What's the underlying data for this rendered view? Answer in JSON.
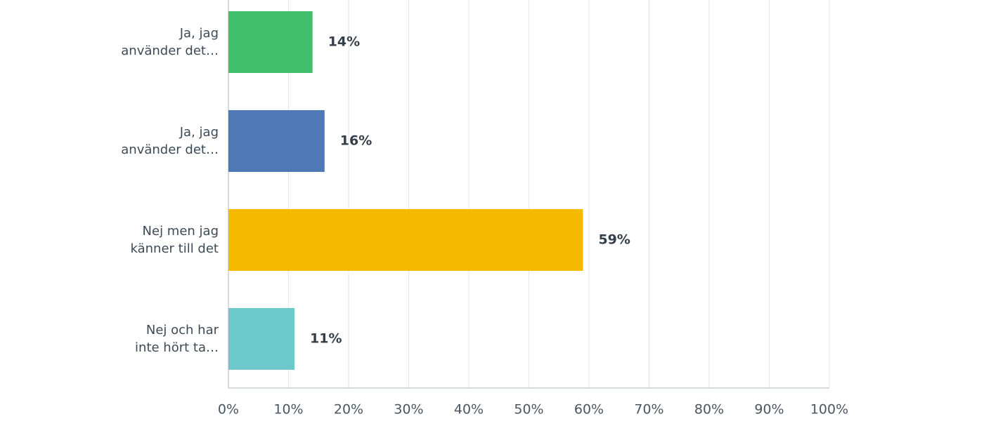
{
  "chart_data": {
    "type": "hbar",
    "categories": [
      "Ja, jag\nanvänder det…",
      "Ja, jag\nanvänder det…",
      "Nej men jag\nkänner till det",
      "Nej och har\ninte hört ta…"
    ],
    "values": [
      14,
      16,
      59,
      11
    ],
    "value_labels": [
      "14%",
      "16%",
      "59%",
      "11%"
    ],
    "colors": [
      "#42bf6c",
      "#4e79b6",
      "#f6bb00",
      "#6cc8cb"
    ],
    "xlim": [
      0,
      100
    ],
    "xticks": [
      {
        "value": 0,
        "label": "0%"
      },
      {
        "value": 10,
        "label": "10%"
      },
      {
        "value": 20,
        "label": "20%"
      },
      {
        "value": 30,
        "label": "30%"
      },
      {
        "value": 40,
        "label": "40%"
      },
      {
        "value": 50,
        "label": "50%"
      },
      {
        "value": 60,
        "label": "60%"
      },
      {
        "value": 70,
        "label": "70%"
      },
      {
        "value": 80,
        "label": "80%"
      },
      {
        "value": 90,
        "label": "90%"
      },
      {
        "value": 100,
        "label": "100%"
      }
    ],
    "grid": true
  }
}
